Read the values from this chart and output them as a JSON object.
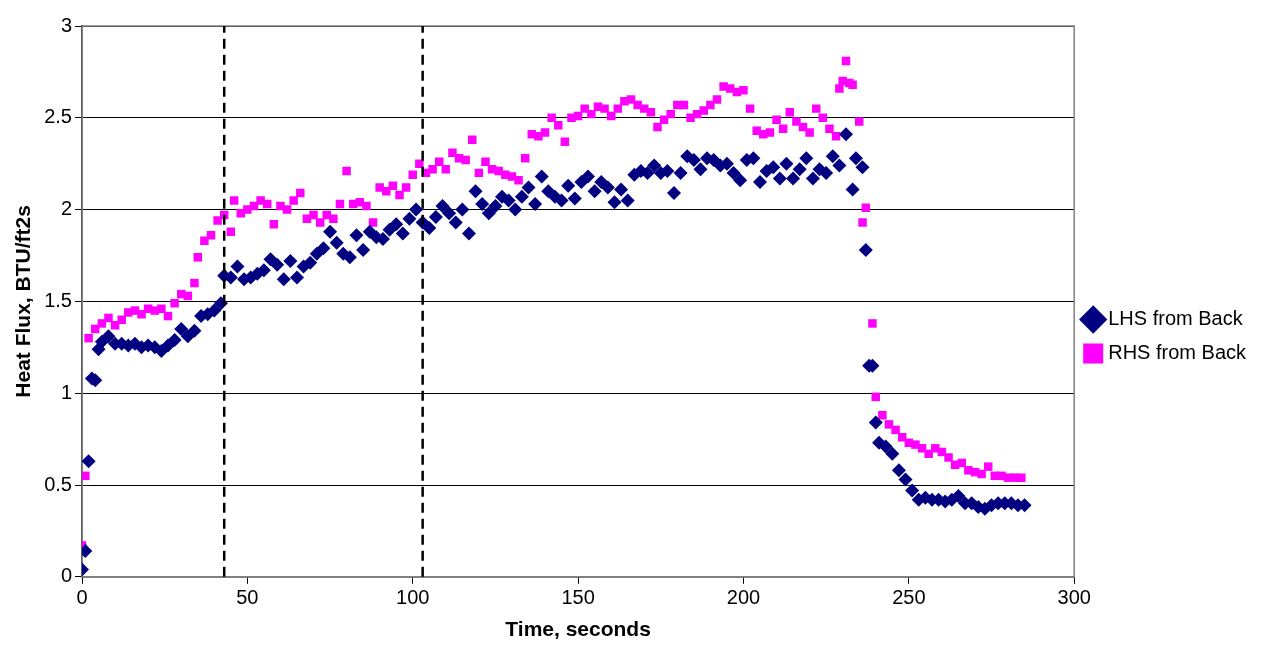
{
  "chart_data": {
    "type": "scatter",
    "xlabel": "Time, seconds",
    "ylabel": "Heat Flux, BTU/ft2s",
    "xlim": [
      0,
      300
    ],
    "ylim": [
      0,
      3
    ],
    "xticks": [
      0,
      50,
      100,
      150,
      200,
      250,
      300
    ],
    "yticks": [
      0,
      0.5,
      1,
      1.5,
      2,
      2.5,
      3
    ],
    "grid": "y",
    "legend": "right",
    "ref_lines": [
      {
        "axis": "x",
        "value": 43,
        "color": "#000000",
        "line_style": "dashed"
      },
      {
        "axis": "x",
        "value": 103,
        "color": "#000000",
        "line_style": "dashed"
      }
    ],
    "series": [
      {
        "name": "LHS from Back",
        "color": "#000080",
        "marker": "diamond",
        "x": [
          0,
          1,
          2,
          3,
          4,
          5,
          6,
          8,
          10,
          12,
          14,
          16,
          18,
          20,
          22,
          24,
          26,
          28,
          30,
          32,
          34,
          36,
          38,
          40,
          42,
          43,
          45,
          47,
          49,
          51,
          53,
          55,
          57,
          59,
          61,
          63,
          65,
          67,
          69,
          71,
          73,
          75,
          77,
          79,
          81,
          83,
          85,
          87,
          89,
          91,
          93,
          95,
          97,
          99,
          101,
          103,
          105,
          107,
          109,
          111,
          113,
          115,
          117,
          119,
          121,
          123,
          125,
          127,
          129,
          131,
          133,
          135,
          137,
          139,
          141,
          143,
          145,
          147,
          149,
          151,
          153,
          155,
          157,
          159,
          161,
          163,
          165,
          167,
          169,
          171,
          173,
          175,
          177,
          179,
          181,
          183,
          185,
          187,
          189,
          191,
          193,
          195,
          197,
          199,
          201,
          203,
          205,
          207,
          209,
          211,
          213,
          215,
          217,
          219,
          221,
          223,
          225,
          227,
          229,
          231,
          233,
          234,
          236,
          237,
          238,
          239,
          240,
          241,
          243,
          245,
          247,
          249,
          251,
          253,
          255,
          257,
          259,
          261,
          263,
          265,
          267,
          269,
          271,
          273,
          275,
          277,
          279,
          281,
          283,
          285
        ],
        "values": [
          0.04,
          0.14,
          0.63,
          1.08,
          1.07,
          1.24,
          1.28,
          1.31,
          1.27,
          1.27,
          1.26,
          1.27,
          1.25,
          1.26,
          1.25,
          1.23,
          1.26,
          1.29,
          1.35,
          1.31,
          1.34,
          1.42,
          1.43,
          1.45,
          1.49,
          1.64,
          1.63,
          1.69,
          1.62,
          1.63,
          1.65,
          1.67,
          1.73,
          1.7,
          1.62,
          1.72,
          1.63,
          1.69,
          1.71,
          1.76,
          1.79,
          1.88,
          1.82,
          1.76,
          1.74,
          1.86,
          1.78,
          1.88,
          1.85,
          1.84,
          1.89,
          1.92,
          1.87,
          1.95,
          2.0,
          1.93,
          1.9,
          1.96,
          2.02,
          1.98,
          1.93,
          2.0,
          1.87,
          2.1,
          2.03,
          1.98,
          2.02,
          2.07,
          2.05,
          2.0,
          2.07,
          2.12,
          2.03,
          2.18,
          2.1,
          2.07,
          2.05,
          2.13,
          2.06,
          2.15,
          2.18,
          2.1,
          2.15,
          2.12,
          2.04,
          2.11,
          2.05,
          2.19,
          2.21,
          2.2,
          2.24,
          2.2,
          2.21,
          2.09,
          2.2,
          2.29,
          2.27,
          2.22,
          2.28,
          2.27,
          2.24,
          2.25,
          2.2,
          2.16,
          2.27,
          2.28,
          2.15,
          2.21,
          2.23,
          2.17,
          2.25,
          2.17,
          2.22,
          2.28,
          2.17,
          2.22,
          2.2,
          2.29,
          2.24,
          2.41,
          2.11,
          2.28,
          2.23,
          1.78,
          1.15,
          1.15,
          0.84,
          0.73,
          0.71,
          0.67,
          0.58,
          0.53,
          0.47,
          0.42,
          0.43,
          0.42,
          0.42,
          0.41,
          0.42,
          0.44,
          0.4,
          0.4,
          0.38,
          0.37,
          0.39,
          0.4,
          0.4,
          0.4,
          0.39,
          0.39
        ]
      },
      {
        "name": "RHS from Back",
        "color": "#ff00ff",
        "marker": "square",
        "x": [
          0,
          1,
          2,
          4,
          6,
          8,
          10,
          12,
          14,
          16,
          18,
          20,
          22,
          24,
          26,
          28,
          30,
          32,
          34,
          35,
          37,
          39,
          41,
          43,
          45,
          46,
          48,
          50,
          52,
          54,
          56,
          58,
          60,
          62,
          64,
          66,
          68,
          70,
          72,
          74,
          76,
          78,
          80,
          82,
          84,
          86,
          88,
          90,
          92,
          94,
          96,
          98,
          100,
          102,
          104,
          106,
          108,
          110,
          112,
          114,
          116,
          118,
          120,
          122,
          124,
          126,
          128,
          130,
          132,
          134,
          136,
          138,
          140,
          142,
          144,
          146,
          148,
          150,
          152,
          154,
          156,
          158,
          160,
          162,
          164,
          166,
          168,
          170,
          172,
          174,
          176,
          178,
          180,
          182,
          184,
          186,
          188,
          190,
          192,
          194,
          196,
          198,
          200,
          202,
          204,
          206,
          208,
          210,
          212,
          214,
          216,
          218,
          220,
          222,
          224,
          226,
          228,
          229,
          230,
          231,
          232,
          233,
          235,
          236,
          237,
          239,
          240,
          242,
          244,
          246,
          248,
          250,
          252,
          254,
          256,
          258,
          260,
          262,
          264,
          266,
          268,
          270,
          272,
          274,
          276,
          278,
          280,
          282,
          284
        ],
        "values": [
          0.17,
          0.55,
          1.3,
          1.35,
          1.38,
          1.41,
          1.37,
          1.4,
          1.44,
          1.45,
          1.43,
          1.46,
          1.45,
          1.46,
          1.42,
          1.49,
          1.54,
          1.53,
          1.6,
          1.74,
          1.83,
          1.86,
          1.94,
          1.97,
          1.88,
          2.05,
          1.98,
          2.0,
          2.02,
          2.05,
          2.03,
          1.92,
          2.02,
          2.0,
          2.05,
          2.09,
          1.95,
          1.97,
          1.93,
          1.97,
          1.95,
          2.03,
          2.21,
          2.03,
          2.04,
          2.02,
          1.93,
          2.12,
          2.1,
          2.13,
          2.08,
          2.12,
          2.19,
          2.25,
          2.2,
          2.22,
          2.26,
          2.22,
          2.31,
          2.28,
          2.27,
          2.38,
          2.2,
          2.26,
          2.22,
          2.21,
          2.19,
          2.18,
          2.16,
          2.28,
          2.41,
          2.4,
          2.42,
          2.5,
          2.46,
          2.37,
          2.5,
          2.51,
          2.55,
          2.52,
          2.56,
          2.55,
          2.51,
          2.55,
          2.59,
          2.6,
          2.57,
          2.55,
          2.53,
          2.45,
          2.49,
          2.52,
          2.57,
          2.57,
          2.5,
          2.52,
          2.54,
          2.57,
          2.6,
          2.67,
          2.66,
          2.64,
          2.65,
          2.55,
          2.43,
          2.41,
          2.42,
          2.49,
          2.44,
          2.53,
          2.48,
          2.45,
          2.42,
          2.55,
          2.5,
          2.44,
          2.4,
          2.66,
          2.7,
          2.81,
          2.69,
          2.68,
          2.48,
          1.93,
          2.01,
          1.38,
          0.98,
          0.88,
          0.83,
          0.8,
          0.76,
          0.73,
          0.72,
          0.7,
          0.67,
          0.7,
          0.68,
          0.65,
          0.61,
          0.62,
          0.58,
          0.57,
          0.56,
          0.6,
          0.55,
          0.55,
          0.54,
          0.54,
          0.54
        ]
      }
    ]
  }
}
